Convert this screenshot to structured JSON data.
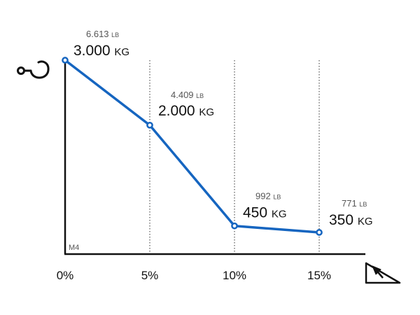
{
  "chart_data": {
    "type": "line",
    "x": [
      "0%",
      "5%",
      "10%",
      "15%"
    ],
    "series": [
      {
        "values": [
          3000,
          2000,
          450,
          350
        ],
        "kg_labels": [
          "3.000",
          "2.000",
          "450",
          "350"
        ],
        "lb_labels": [
          "6.613",
          "4.409",
          "992",
          "771"
        ]
      }
    ],
    "kg_unit": "KG",
    "lb_unit": "LB",
    "corner_label": "M4",
    "ylim": [
      0,
      3000
    ],
    "grid": "vertical-dotted",
    "line_color": "#1565c0",
    "y_icon": "hook-icon",
    "x_icon": "slope-icon"
  }
}
